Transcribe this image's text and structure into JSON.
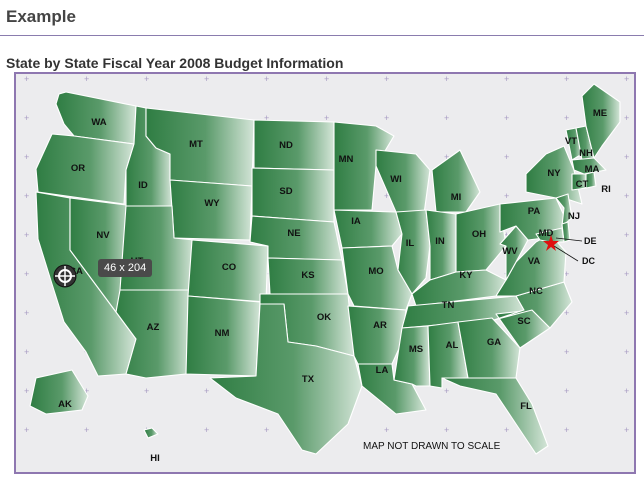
{
  "page": {
    "title": "Example",
    "section_title": "State by State Fiscal Year 2008 Budget Information"
  },
  "map": {
    "note": "MAP NOT DRAWN TO SCALE",
    "tooltip": "46 x 204",
    "colors": {
      "state_dark": "#2f7d43",
      "state_light": "#d4e5d8",
      "background": "#ececee",
      "frame": "#8e77b0",
      "dc_marker": "#e01010"
    },
    "states": [
      {
        "abbr": "WA"
      },
      {
        "abbr": "OR"
      },
      {
        "abbr": "CA"
      },
      {
        "abbr": "NV"
      },
      {
        "abbr": "ID"
      },
      {
        "abbr": "MT"
      },
      {
        "abbr": "WY"
      },
      {
        "abbr": "UT"
      },
      {
        "abbr": "AZ"
      },
      {
        "abbr": "CO"
      },
      {
        "abbr": "NM"
      },
      {
        "abbr": "ND"
      },
      {
        "abbr": "SD"
      },
      {
        "abbr": "NE"
      },
      {
        "abbr": "KS"
      },
      {
        "abbr": "OK"
      },
      {
        "abbr": "TX"
      },
      {
        "abbr": "MN"
      },
      {
        "abbr": "IA"
      },
      {
        "abbr": "MO"
      },
      {
        "abbr": "AR"
      },
      {
        "abbr": "LA"
      },
      {
        "abbr": "WI"
      },
      {
        "abbr": "IL"
      },
      {
        "abbr": "MI"
      },
      {
        "abbr": "IN"
      },
      {
        "abbr": "OH"
      },
      {
        "abbr": "KY"
      },
      {
        "abbr": "TN"
      },
      {
        "abbr": "MS"
      },
      {
        "abbr": "AL"
      },
      {
        "abbr": "GA"
      },
      {
        "abbr": "FL"
      },
      {
        "abbr": "SC"
      },
      {
        "abbr": "NC"
      },
      {
        "abbr": "VA"
      },
      {
        "abbr": "WV"
      },
      {
        "abbr": "PA"
      },
      {
        "abbr": "NY"
      },
      {
        "abbr": "VT"
      },
      {
        "abbr": "NH"
      },
      {
        "abbr": "ME"
      },
      {
        "abbr": "MA"
      },
      {
        "abbr": "CT"
      },
      {
        "abbr": "RI"
      },
      {
        "abbr": "NJ"
      },
      {
        "abbr": "DE"
      },
      {
        "abbr": "MD"
      },
      {
        "abbr": "AK"
      },
      {
        "abbr": "HI"
      }
    ],
    "dc": {
      "abbr": "DC"
    }
  }
}
